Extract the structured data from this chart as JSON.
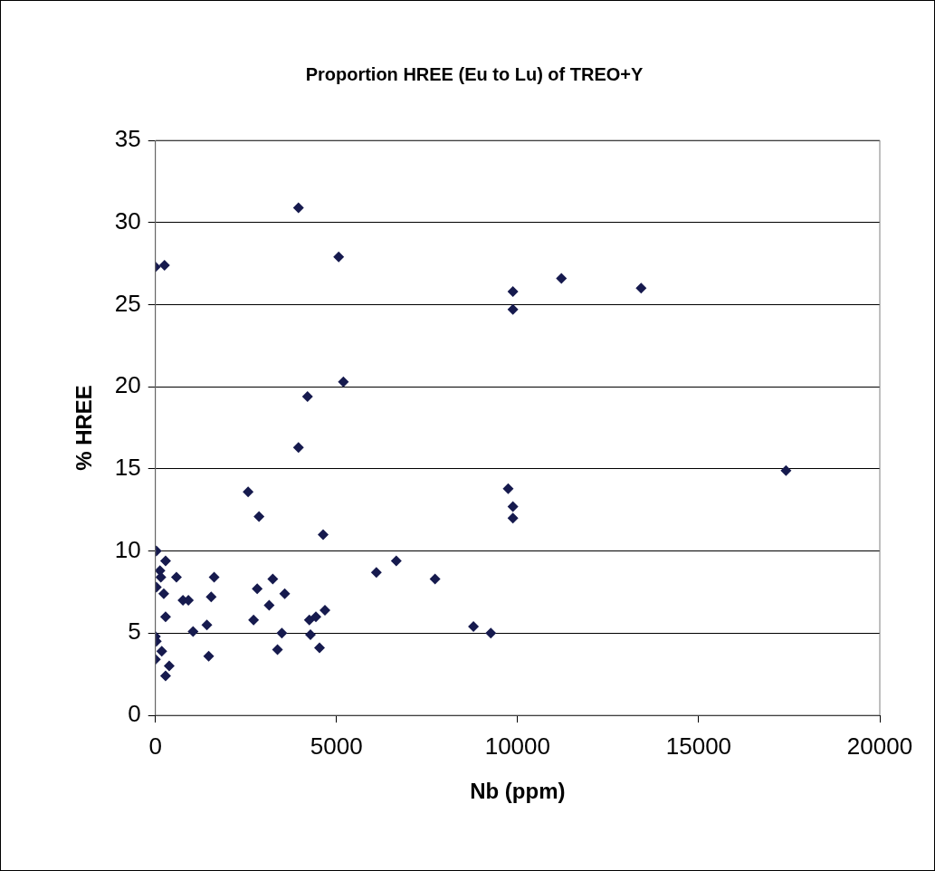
{
  "chart_data": {
    "type": "scatter",
    "title": "Proportion HREE (Eu to Lu) of TREO+Y",
    "xlabel": "Nb (ppm)",
    "ylabel": "% HREE",
    "series": [
      {
        "color": "#161a4e",
        "x": [
          0,
          250,
          3950,
          5060,
          5190,
          4200,
          3950,
          2560,
          2860,
          25,
          280,
          125,
          150,
          580,
          1620,
          25,
          230,
          2810,
          3240,
          3570,
          3140,
          760,
          910,
          1540,
          280,
          2710,
          4250,
          4430,
          4680,
          1040,
          1420,
          3490,
          4280,
          3370,
          4530,
          1470,
          0,
          25,
          175,
          0,
          380,
          280,
          4630,
          6100,
          6650,
          7720,
          8780,
          9260,
          9740,
          9870,
          9870,
          9870,
          9870,
          11210,
          13410,
          17410
        ],
        "values": [
          27.3,
          27.4,
          30.9,
          27.9,
          20.3,
          19.4,
          16.3,
          13.6,
          12.1,
          10.0,
          9.4,
          8.8,
          8.4,
          8.4,
          8.4,
          7.8,
          7.4,
          7.7,
          8.3,
          7.4,
          6.7,
          7.0,
          7.0,
          7.2,
          6.0,
          5.8,
          5.8,
          6.0,
          6.4,
          5.1,
          5.5,
          5.0,
          4.9,
          4.0,
          4.1,
          3.6,
          4.8,
          4.5,
          3.9,
          3.4,
          3.0,
          2.4,
          11.0,
          8.7,
          9.4,
          8.3,
          5.4,
          5.0,
          13.8,
          12.7,
          12.0,
          25.8,
          24.7,
          26.6,
          26.0,
          14.9
        ]
      }
    ],
    "xlim": [
      0,
      20000
    ],
    "xticks": [
      0,
      5000,
      10000,
      15000,
      20000
    ],
    "ylim": [
      0,
      35
    ],
    "yticks": [
      0,
      5,
      10,
      15,
      20,
      25,
      30,
      35
    ],
    "grid": "y",
    "marker": "diamond",
    "legend": false
  }
}
